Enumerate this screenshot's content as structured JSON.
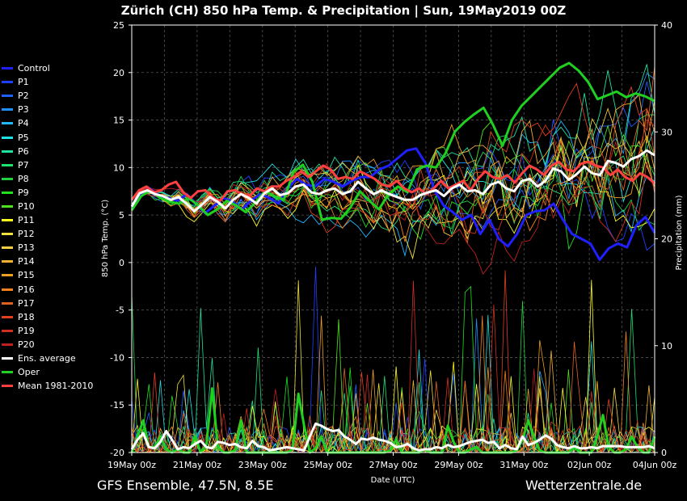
{
  "title": "Zürich  (CH)  850 hPa Temp. & Precipitation | Sun, 19May2019 00Z",
  "footer_left": "GFS Ensemble, 47.5N, 8.5E",
  "footer_right": "Wetterzentrale.de",
  "colors": {
    "background": "#000000",
    "grid": "#555555",
    "axis": "#ffffff"
  },
  "legend": [
    {
      "label": "Control",
      "color": "#2020ff"
    },
    {
      "label": "P1",
      "color": "#2040ff"
    },
    {
      "label": "P2",
      "color": "#2060ff"
    },
    {
      "label": "P3",
      "color": "#2090ff"
    },
    {
      "label": "P4",
      "color": "#20b8ff"
    },
    {
      "label": "P5",
      "color": "#20e0e0"
    },
    {
      "label": "P6",
      "color": "#20e0a0"
    },
    {
      "label": "P7",
      "color": "#20e070"
    },
    {
      "label": "P8",
      "color": "#20d040"
    },
    {
      "label": "P9",
      "color": "#20e020"
    },
    {
      "label": "P10",
      "color": "#50e020"
    },
    {
      "label": "P11",
      "color": "#ffff20"
    },
    {
      "label": "P12",
      "color": "#f0e040"
    },
    {
      "label": "P13",
      "color": "#f0d040"
    },
    {
      "label": "P14",
      "color": "#f0b030"
    },
    {
      "label": "P15",
      "color": "#f0a020"
    },
    {
      "label": "P16",
      "color": "#f08020"
    },
    {
      "label": "P17",
      "color": "#e06020"
    },
    {
      "label": "P18",
      "color": "#e04020"
    },
    {
      "label": "P19",
      "color": "#d03020"
    },
    {
      "label": "P20",
      "color": "#c02020"
    },
    {
      "label": "Ens. average",
      "color": "#ffffff"
    },
    {
      "label": "Oper",
      "color": "#20d020"
    },
    {
      "label": "Mean 1981-2010",
      "color": "#ff4040"
    }
  ],
  "chart_data": {
    "type": "line",
    "xlabel": "Date (UTC)",
    "ylabel": "850 hPa Temp. (°C)",
    "y2label": "Precipitation (mm)",
    "ylim": [
      -20,
      25
    ],
    "y2lim": [
      0,
      40
    ],
    "yticks": [
      -20,
      -15,
      -10,
      -5,
      0,
      5,
      10,
      15,
      20,
      25
    ],
    "y2ticks": [
      0,
      10,
      20,
      30,
      40
    ],
    "xlim_days": [
      0,
      16
    ],
    "xticks": [
      {
        "day": 0,
        "label": "19May 00z"
      },
      {
        "day": 2,
        "label": "21May 00z"
      },
      {
        "day": 4,
        "label": "23May 00z"
      },
      {
        "day": 6,
        "label": "25May 00z"
      },
      {
        "day": 8,
        "label": "27May 00z"
      },
      {
        "day": 10,
        "label": "29May 00z"
      },
      {
        "day": 12,
        "label": "31May 00z"
      },
      {
        "day": 14,
        "label": "02Jun 00z"
      },
      {
        "day": 16,
        "label": "04Jun 00z"
      }
    ],
    "grid": true,
    "temperature": {
      "Oper": [
        5.5,
        7.0,
        7.6,
        6.8,
        6.4,
        6.2,
        6.8,
        6.0,
        5.0,
        5.6,
        6.5,
        6.0,
        5.3,
        6.3,
        7.5,
        7.0,
        6.6,
        9.5,
        10.3,
        8.5,
        4.5,
        4.7,
        4.6,
        5.8,
        7.5,
        6.5,
        5.6,
        7.2,
        8.0,
        7.4,
        9.8,
        10.2,
        10.0,
        11.5,
        13.8,
        14.8,
        15.6,
        16.3,
        14.5,
        12.3,
        15.0,
        16.5,
        17.5,
        18.5,
        19.5,
        20.5,
        21.0,
        20.2,
        19.0,
        17.2,
        17.6,
        18.0,
        17.4,
        17.8,
        17.5,
        17.0
      ],
      "Control": [
        5.8,
        7.2,
        7.8,
        7.0,
        6.8,
        6.5,
        7.2,
        6.2,
        5.2,
        6.0,
        6.8,
        6.4,
        5.6,
        6.5,
        7.2,
        6.8,
        6.2,
        7.8,
        8.8,
        8.2,
        8.0,
        8.8,
        8.5,
        8.0,
        8.6,
        9.0,
        9.0,
        9.8,
        10.2,
        11.0,
        11.8,
        12.0,
        10.5,
        7.6,
        6.0,
        5.3,
        4.5,
        5.0,
        3.0,
        4.5,
        2.5,
        1.7,
        3.0,
        5.0,
        5.4,
        5.5,
        6.2,
        4.5,
        3.0,
        2.5,
        2.0,
        0.3,
        1.5,
        2.0,
        1.6,
        3.9,
        4.8,
        3.1
      ],
      "Ens. average": [
        5.9,
        7.3,
        7.6,
        7.2,
        7.0,
        6.6,
        6.9,
        6.2,
        5.4,
        6.1,
        6.9,
        6.4,
        5.7,
        6.6,
        7.2,
        6.8,
        6.2,
        7.3,
        7.8,
        7.1,
        7.3,
        8.0,
        8.2,
        7.4,
        7.2,
        7.6,
        7.8,
        7.2,
        7.5,
        8.5,
        7.8,
        7.2,
        7.6,
        7.2,
        6.9,
        6.6,
        6.6,
        7.1,
        7.4,
        7.6,
        7.0,
        7.8,
        8.2,
        7.5,
        7.6,
        7.2,
        8.2,
        8.5,
        7.8,
        7.5,
        8.6,
        8.8,
        8.0,
        8.6,
        9.9,
        9.6,
        8.7,
        9.3,
        10.1,
        9.4,
        9.2,
        10.7,
        10.5,
        10.1,
        10.9,
        11.2,
        11.8,
        11.3
      ],
      "Mean 1981-2010": [
        6.6,
        7.6,
        8.0,
        7.4,
        7.6,
        8.2,
        8.5,
        7.4,
        6.8,
        7.5,
        7.6,
        6.8,
        6.5,
        7.5,
        7.6,
        7.2,
        7.0,
        7.8,
        7.5,
        8.0,
        8.0,
        8.6,
        9.0,
        9.6,
        9.0,
        9.6,
        10.2,
        9.8,
        8.8,
        9.0,
        8.8,
        9.6,
        9.2,
        8.8,
        8.2,
        8.0,
        8.6,
        7.8,
        7.4,
        7.8,
        7.2,
        7.8,
        8.6,
        7.8,
        8.2,
        8.6,
        7.6,
        8.8,
        9.6,
        9.0,
        8.8,
        9.2,
        8.4,
        9.4,
        10.2,
        9.8,
        9.2,
        10.2,
        10.6,
        9.8,
        9.6,
        10.4,
        10.6,
        10.2,
        10.0,
        9.2,
        9.8,
        9.0,
        8.6,
        9.4,
        9.0,
        8.3
      ]
    },
    "precipitation": {
      "Oper": [
        0,
        1.5,
        3,
        0.5,
        0.5,
        1.5,
        0.3,
        0,
        0.3,
        0,
        0,
        1.5,
        0,
        0.8,
        6,
        0.5,
        0,
        0,
        0.2,
        3,
        0,
        0,
        0,
        0,
        0,
        0,
        0,
        0,
        0.3,
        5.5,
        2.5,
        0,
        0.4,
        1.5,
        0,
        0,
        0,
        0,
        0,
        0,
        0,
        0,
        0,
        0,
        0,
        0.2,
        1.2,
        0,
        0,
        0,
        0,
        0.3,
        0,
        0,
        0,
        2.5,
        1,
        0,
        0,
        0.3,
        0.5,
        0,
        0,
        0,
        0,
        0,
        0,
        0.2,
        1.2,
        3,
        1.5,
        0.2,
        0,
        0,
        0,
        0,
        0,
        0.5,
        0,
        0,
        0,
        1.5,
        3.5,
        0.5,
        0,
        0,
        0.3,
        1.5,
        0.5,
        0,
        0,
        1.5
      ],
      "Ens. average": [
        0.3,
        1.2,
        1.8,
        0.5,
        0.4,
        1.0,
        2.0,
        1.2,
        0.3,
        0.5,
        0.4,
        0.8,
        1.1,
        0.5,
        0.4,
        1.0,
        0.9,
        0.7,
        0.8,
        0.5,
        0.4,
        1.1,
        0.6,
        0.5,
        0.2,
        0.3,
        0.4,
        0.5,
        0.4,
        0.3,
        0.2,
        1.5,
        2.7,
        2.5,
        2.2,
        2.0,
        2.1,
        1.5,
        1.2,
        0.8,
        1.3,
        1.2,
        1.4,
        1.2,
        1.1,
        0.9,
        0.5,
        0.6,
        0.8,
        0.4,
        0.2,
        0.3,
        0.3,
        0.5,
        0.4,
        0.7,
        0.5,
        0.6,
        0.8,
        1.0,
        1.1,
        1.2,
        0.9,
        1.0,
        0.4,
        0.7,
        0.4,
        0.3,
        1.5,
        0.7,
        0.9,
        1.2,
        1.6,
        1.3,
        0.7,
        0.5,
        0.4,
        0.6,
        0.4,
        0.4,
        0.5,
        0.4,
        0.6,
        0.6,
        0.6,
        0.6,
        0.5,
        0.5,
        0.5,
        0.5,
        0.6,
        0.4
      ]
    }
  }
}
